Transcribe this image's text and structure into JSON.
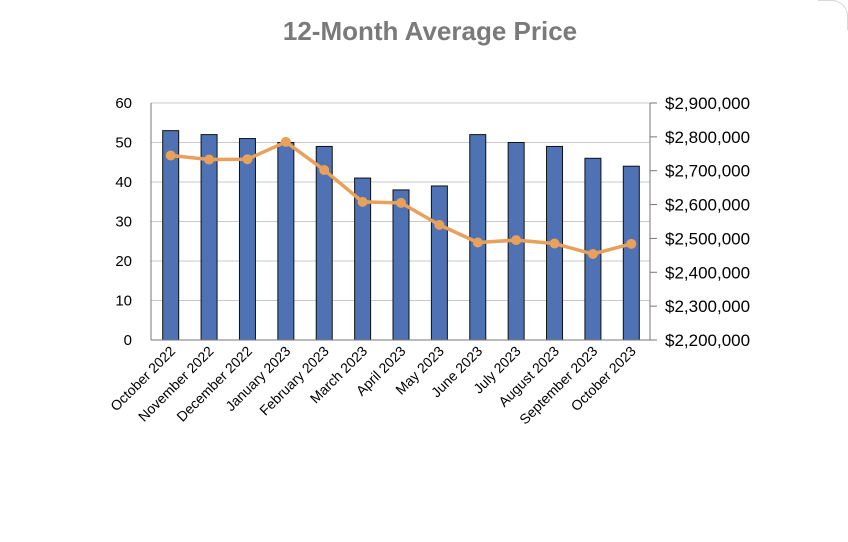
{
  "chart_data": {
    "type": "bar",
    "title": "12-Month Average Price",
    "categories": [
      "October 2022",
      "November 2022",
      "December 2022",
      "January 2023",
      "February 2023",
      "March 2023",
      "April 2023",
      "May 2023",
      "June 2023",
      "July 2023",
      "August 2023",
      "September 2023",
      "October 2023"
    ],
    "series": [
      {
        "type": "bar",
        "axis": "left",
        "color": "#4f72b5",
        "values": [
          53,
          52,
          51,
          50,
          49,
          41,
          38,
          39,
          52,
          50,
          49,
          46,
          44
        ]
      },
      {
        "type": "line",
        "axis": "right",
        "color": "#e8a05a",
        "values": [
          2745000,
          2733000,
          2734000,
          2785000,
          2702000,
          2608000,
          2605000,
          2540000,
          2488000,
          2495000,
          2485000,
          2454000,
          2484000
        ]
      }
    ],
    "y_left": {
      "min": 0,
      "max": 60,
      "ticks": [
        "0",
        "10",
        "20",
        "30",
        "40",
        "50",
        "60"
      ]
    },
    "y_right": {
      "min": 2200000,
      "max": 2900000,
      "ticks": [
        "$2,200,000",
        "$2,300,000",
        "$2,400,000",
        "$2,500,000",
        "$2,600,000",
        "$2,700,000",
        "$2,800,000",
        "$2,900,000"
      ]
    },
    "grid": true,
    "legend": "none"
  }
}
